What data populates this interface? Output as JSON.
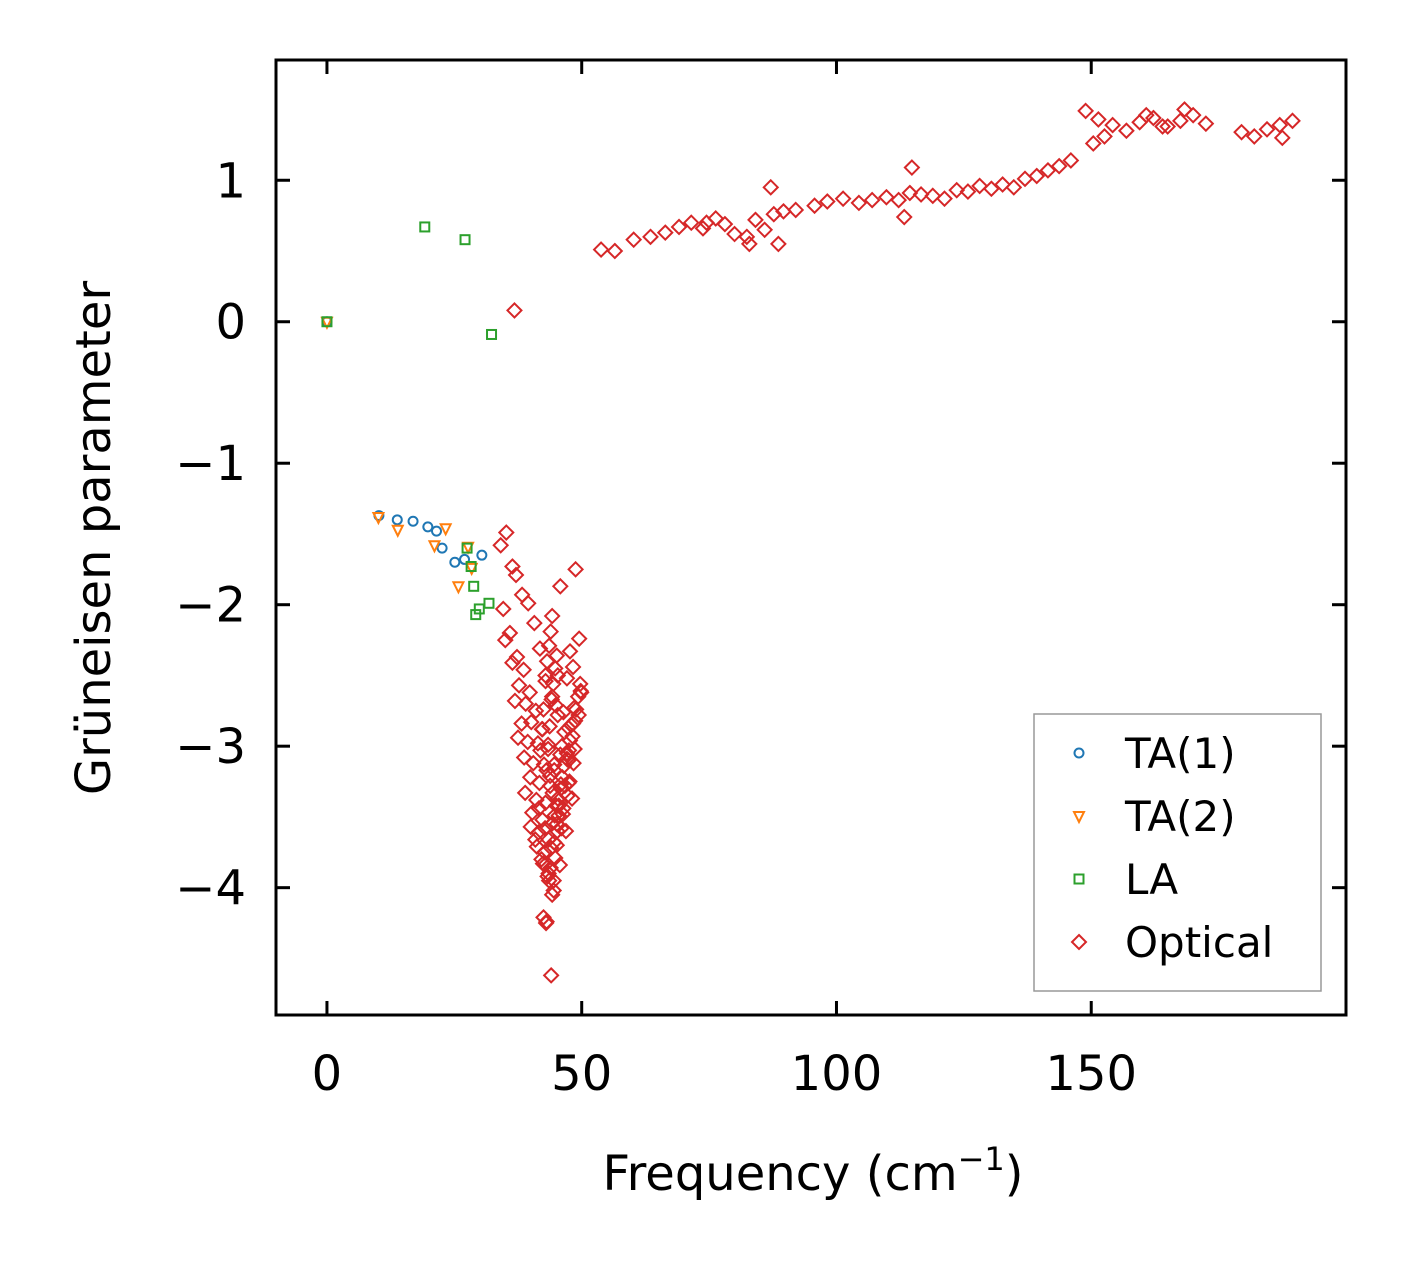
{
  "chart_data": {
    "type": "scatter",
    "title": "",
    "xlabel": "Frequency (cm",
    "xlabel_sup": "−1",
    "xlabel_end": ")",
    "ylabel": "Grüneisen parameter",
    "xlim": [
      -10,
      200
    ],
    "ylim": [
      -4.9,
      1.85
    ],
    "xticks": [
      0,
      50,
      100,
      150
    ],
    "xtick_labels": [
      "0",
      "50",
      "100",
      "150"
    ],
    "yticks": [
      1,
      0,
      -1,
      -2,
      -3,
      -4
    ],
    "ytick_labels": [
      "1",
      "0",
      "−1",
      "−2",
      "−3",
      "−4"
    ],
    "legend_position": "lower-right",
    "series": [
      {
        "name": "TA(1)",
        "marker": "circle",
        "color": "#1f77b4",
        "x": [
          0,
          10.2,
          13.8,
          16.9,
          19.8,
          21.5,
          22.6,
          25.1,
          27.0,
          30.4
        ],
        "y": [
          0,
          -1.37,
          -1.4,
          -1.41,
          -1.45,
          -1.48,
          -1.6,
          -1.7,
          -1.68,
          -1.65
        ]
      },
      {
        "name": "TA(2)",
        "marker": "triangle-down",
        "color": "#ff7f0e",
        "x": [
          0,
          10.1,
          13.9,
          21.1,
          23.3,
          25.8,
          27.7,
          28.4
        ],
        "y": [
          0,
          -1.38,
          -1.47,
          -1.58,
          -1.46,
          -1.87,
          -1.59,
          -1.74
        ]
      },
      {
        "name": "LA",
        "marker": "square",
        "color": "#2ca02c",
        "x": [
          0,
          19.2,
          27.1,
          32.3,
          27.5,
          28.8,
          29.9,
          31.8,
          29.2,
          28.3
        ],
        "y": [
          0,
          0.67,
          0.58,
          -0.09,
          -1.6,
          -1.87,
          -2.03,
          -1.99,
          -2.07,
          -1.73
        ]
      },
      {
        "name": "Optical",
        "marker": "diamond",
        "color": "#d62728",
        "x": [
          36.8,
          53.8,
          56.5,
          60.2,
          63.5,
          66.4,
          69.1,
          71.5,
          73.8,
          76.3,
          78.1,
          80.0,
          82.4,
          84.1,
          85.9,
          87.7,
          89.6,
          92.0,
          95.7,
          98.2,
          101.3,
          104.4,
          107.0,
          109.8,
          112.2,
          114.4,
          116.6,
          118.9,
          121.2,
          123.6,
          125.8,
          128.1,
          130.4,
          132.6,
          134.8,
          137.0,
          139.3,
          141.5,
          143.7,
          146.0,
          148.9,
          151.4,
          154.2,
          156.9,
          159.5,
          162.2,
          165.0,
          167.5,
          170.0,
          172.5,
          179.5,
          182.0,
          184.5,
          187.0,
          189.5,
          87.1,
          114.8,
          113.3,
          82.9,
          88.6,
          74.5,
          150.4,
          152.6,
          160.8,
          164.0,
          168.3,
          187.5,
          36.4,
          48.8,
          45.8,
          44.0,
          43.1,
          47.1,
          42.5,
          43.5,
          44.6,
          46.4,
          47.7,
          48.3,
          49.5,
          43.8,
          42.8,
          45.1,
          47.4,
          44.2,
          45.5,
          46.1,
          47.9,
          49.9,
          34.1,
          35.2,
          37.1,
          38.3,
          39.5,
          40.7,
          41.8,
          42.9,
          44.2,
          45.3,
          46.6,
          47.4,
          48.5,
          49.7,
          34.6,
          35.9,
          37.3,
          38.6,
          39.8,
          41.0,
          42.3,
          43.4,
          44.6,
          45.9,
          47.1,
          48.2,
          49.4,
          35.0,
          36.4,
          37.7,
          39.0,
          40.1,
          41.4,
          42.6,
          43.8,
          45.0,
          46.2,
          47.5,
          48.7,
          49.8,
          36.9,
          38.2,
          39.4,
          40.5,
          41.7,
          42.9,
          44.1,
          45.3,
          46.5,
          47.7,
          48.9,
          37.5,
          38.7,
          39.9,
          41.1,
          42.3,
          43.5,
          44.7,
          45.9,
          47.1,
          48.3,
          49.3,
          38.9,
          40.3,
          41.5,
          42.7,
          43.9,
          45.1,
          46.3,
          47.4,
          48.6,
          40.0,
          41.2,
          42.4,
          43.6,
          44.8,
          46.0,
          47.2,
          48.4,
          40.9,
          42.1,
          43.3,
          44.5,
          45.7,
          46.9,
          48.1,
          41.6,
          42.8,
          44.0,
          45.2,
          46.4,
          47.6,
          41.9,
          43.1,
          44.3,
          45.5,
          46.7,
          42.2,
          43.4,
          44.6,
          45.8,
          42.5,
          43.7,
          44.9,
          42.9,
          44.1,
          45.3,
          43.2,
          44.4,
          43.6,
          44.8,
          43.9,
          45.1,
          44.2,
          43.0,
          44.5
        ],
        "y": [
          0.08,
          0.51,
          0.5,
          0.58,
          0.6,
          0.63,
          0.67,
          0.7,
          0.66,
          0.73,
          0.69,
          0.62,
          0.6,
          0.72,
          0.65,
          0.76,
          0.78,
          0.79,
          0.82,
          0.85,
          0.87,
          0.84,
          0.86,
          0.88,
          0.86,
          0.91,
          0.9,
          0.89,
          0.87,
          0.93,
          0.92,
          0.96,
          0.94,
          0.97,
          0.95,
          1.01,
          1.03,
          1.07,
          1.1,
          1.14,
          1.49,
          1.43,
          1.39,
          1.35,
          1.41,
          1.44,
          1.38,
          1.42,
          1.46,
          1.4,
          1.34,
          1.31,
          1.36,
          1.39,
          1.42,
          0.95,
          1.09,
          0.74,
          0.55,
          0.55,
          0.7,
          1.26,
          1.31,
          1.46,
          1.38,
          1.5,
          1.3,
          -1.73,
          -1.75,
          -1.87,
          -4.62,
          -4.24,
          -2.52,
          -4.21,
          -3.9,
          -3.68,
          -2.76,
          -2.33,
          -2.44,
          -2.24,
          -3.21,
          -3.84,
          -3.55,
          -3.1,
          -4.05,
          -3.42,
          -3.0,
          -2.85,
          -2.62,
          -1.58,
          -1.49,
          -1.79,
          -1.93,
          -1.99,
          -2.13,
          -2.31,
          -2.5,
          -2.65,
          -2.78,
          -2.9,
          -2.87,
          -2.73,
          -2.56,
          -2.03,
          -2.2,
          -2.37,
          -2.46,
          -2.62,
          -2.75,
          -2.88,
          -3.02,
          -3.17,
          -3.3,
          -3.09,
          -2.93,
          -2.78,
          -2.25,
          -2.41,
          -2.57,
          -2.7,
          -2.83,
          -2.98,
          -3.13,
          -3.28,
          -3.42,
          -3.22,
          -3.03,
          -2.82,
          -2.61,
          -2.68,
          -2.84,
          -2.97,
          -3.12,
          -3.26,
          -3.4,
          -3.55,
          -3.37,
          -3.14,
          -2.96,
          -2.74,
          -2.94,
          -3.08,
          -3.22,
          -3.38,
          -3.52,
          -3.66,
          -3.49,
          -3.27,
          -3.05,
          -2.84,
          -2.65,
          -3.33,
          -3.47,
          -3.61,
          -3.75,
          -3.86,
          -3.7,
          -3.48,
          -3.26,
          -3.02,
          -3.57,
          -3.71,
          -3.83,
          -3.95,
          -3.79,
          -3.58,
          -3.35,
          -3.12,
          -3.66,
          -3.8,
          -3.92,
          -4.02,
          -3.84,
          -3.6,
          -3.37,
          -3.44,
          -3.58,
          -3.72,
          -3.6,
          -3.44,
          -3.25,
          -3.03,
          -3.17,
          -3.33,
          -3.49,
          -3.28,
          -2.88,
          -2.99,
          -3.13,
          -3.06,
          -2.74,
          -2.86,
          -2.71,
          -2.54,
          -2.67,
          -2.5,
          -2.4,
          -2.56,
          -2.29,
          -2.45,
          -2.19,
          -2.36,
          -2.08,
          -4.25,
          -3.95
        ]
      }
    ]
  }
}
